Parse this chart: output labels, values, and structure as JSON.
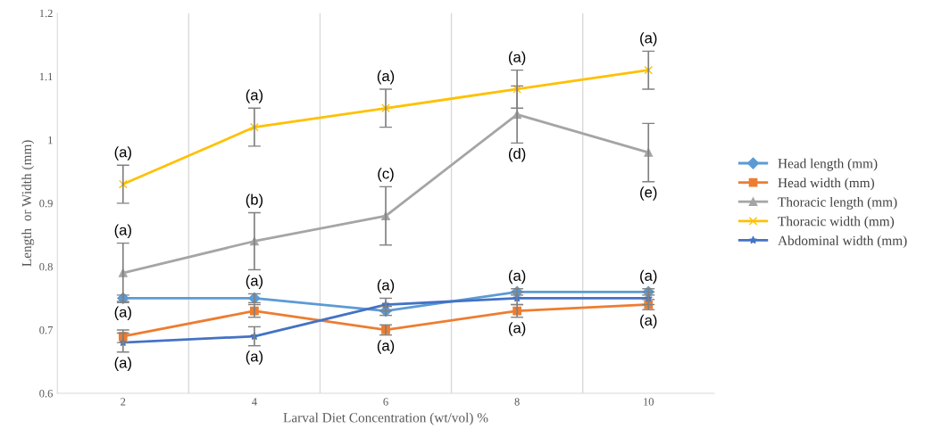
{
  "chart_data": {
    "type": "line",
    "xlabel": "Larval Diet Concentration (wt/vol) %",
    "ylabel": "Length  or Width (mm)",
    "categories": [
      "2",
      "4",
      "6",
      "8",
      "10"
    ],
    "ylim": [
      0.6,
      1.2
    ],
    "yticks": [
      0.6,
      0.7,
      0.8,
      0.9,
      1,
      1.1,
      1.2
    ],
    "grid": "x",
    "legend": "right",
    "series": [
      {
        "name": "Head length (mm)",
        "color": "#5b9bd5",
        "marker": "diamond",
        "values": [
          0.75,
          0.75,
          0.73,
          0.76,
          0.76
        ],
        "errors": [
          0.005,
          0.007,
          0.007,
          0.005,
          0.005
        ]
      },
      {
        "name": "Head width (mm)",
        "color": "#ed7d31",
        "marker": "square",
        "values": [
          0.69,
          0.73,
          0.7,
          0.73,
          0.74
        ],
        "errors": [
          0.01,
          0.01,
          0.008,
          0.01,
          0.008
        ]
      },
      {
        "name": "Thoracic length (mm)",
        "color": "#a5a5a5",
        "marker": "triangle",
        "values": [
          0.79,
          0.84,
          0.88,
          1.04,
          0.98
        ],
        "errors": [
          0.047,
          0.045,
          0.046,
          0.045,
          0.046
        ]
      },
      {
        "name": "Thoracic width (mm)",
        "color": "#ffc000",
        "marker": "cross",
        "values": [
          0.93,
          1.02,
          1.05,
          1.08,
          1.11
        ],
        "errors": [
          0.03,
          0.03,
          0.03,
          0.03,
          0.03
        ]
      },
      {
        "name": "Abdominal width (mm)",
        "color": "#4472c4",
        "marker": "star",
        "values": [
          0.68,
          0.69,
          0.74,
          0.75,
          0.75
        ],
        "errors": [
          0.015,
          0.015,
          0.01,
          0.01,
          0.01
        ]
      }
    ],
    "annotations": [
      {
        "text": "(a)",
        "x": "2",
        "y": 0.96
      },
      {
        "text": "(a)",
        "x": "2",
        "y": 0.837
      },
      {
        "text": "(a)",
        "x": "2",
        "y": 0.745
      },
      {
        "text": "(a)",
        "x": "2",
        "y": 0.665
      },
      {
        "text": "(a)",
        "x": "4",
        "y": 1.05
      },
      {
        "text": "(b)",
        "x": "4",
        "y": 0.885
      },
      {
        "text": "(a)",
        "x": "4",
        "y": 0.757
      },
      {
        "text": "(a)",
        "x": "4",
        "y": 0.675
      },
      {
        "text": "(a)",
        "x": "6",
        "y": 1.08
      },
      {
        "text": "(c)",
        "x": "6",
        "y": 0.926
      },
      {
        "text": "(a)",
        "x": "6",
        "y": 0.75
      },
      {
        "text": "(a)",
        "x": "6",
        "y": 0.692
      },
      {
        "text": "(a)",
        "x": "8",
        "y": 1.11
      },
      {
        "text": "(d)",
        "x": "8",
        "y": 0.995
      },
      {
        "text": "(a)",
        "x": "8",
        "y": 0.765
      },
      {
        "text": "(a)",
        "x": "8",
        "y": 0.72
      },
      {
        "text": "(a)",
        "x": "10",
        "y": 1.14
      },
      {
        "text": "(e)",
        "x": "10",
        "y": 0.934
      },
      {
        "text": "(a)",
        "x": "10",
        "y": 0.765
      },
      {
        "text": "(a)",
        "x": "10",
        "y": 0.732
      }
    ]
  }
}
